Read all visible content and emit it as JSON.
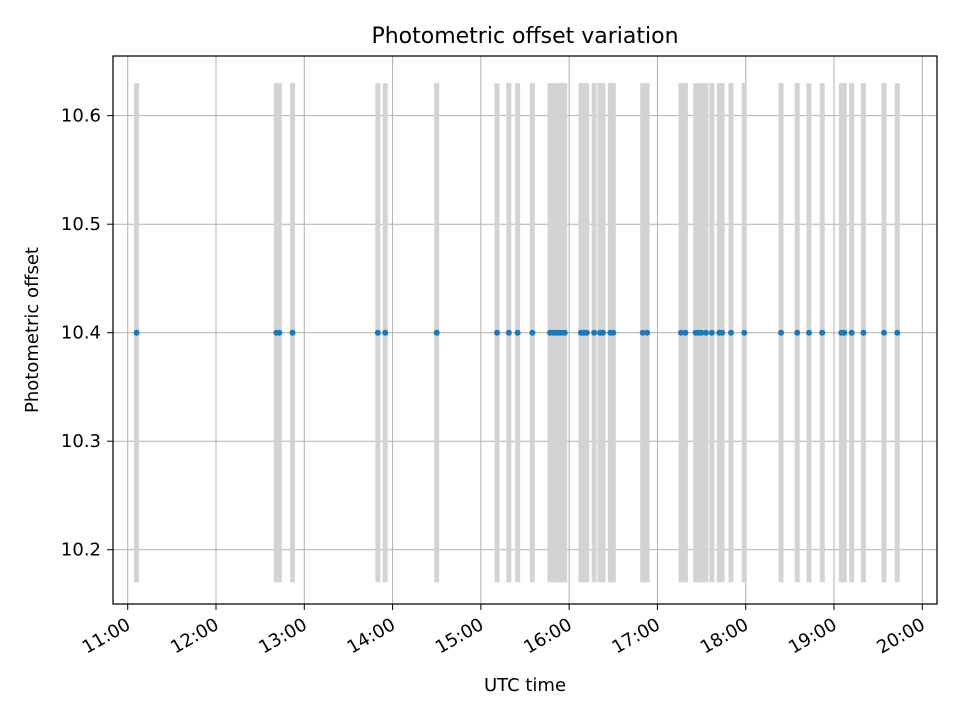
{
  "chart_data": {
    "type": "scatter",
    "title": "Photometric offset variation",
    "xlabel": "UTC time",
    "ylabel": "Photometric offset",
    "xlim": [
      "10:50",
      "20:10"
    ],
    "ylim": [
      10.15,
      10.655
    ],
    "grid": true,
    "x_ticks": [
      "11:00",
      "12:00",
      "13:00",
      "14:00",
      "15:00",
      "16:00",
      "17:00",
      "18:00",
      "19:00",
      "20:00"
    ],
    "y_ticks": [
      "10.2",
      "10.3",
      "10.4",
      "10.5",
      "10.6"
    ],
    "error_bar_range": [
      10.17,
      10.63
    ],
    "series": [
      {
        "color": "#1f77b4",
        "errorbar_color": "#d3d3d3",
        "x": [
          "11:06",
          "12:41",
          "12:43",
          "12:52",
          "13:50",
          "13:55",
          "14:30",
          "15:11",
          "15:19",
          "15:25",
          "15:35",
          "15:47",
          "15:49",
          "15:51",
          "15:53",
          "15:55",
          "15:57",
          "16:08",
          "16:10",
          "16:12",
          "16:17",
          "16:21",
          "16:23",
          "16:28",
          "16:30",
          "16:50",
          "16:53",
          "17:16",
          "17:19",
          "17:26",
          "17:28",
          "17:30",
          "17:33",
          "17:37",
          "17:42",
          "17:44",
          "17:50",
          "17:59",
          "18:24",
          "18:35",
          "18:43",
          "18:52",
          "19:05",
          "19:07",
          "19:12",
          "19:20",
          "19:34",
          "19:43"
        ],
        "y": [
          10.4,
          10.4,
          10.4,
          10.4,
          10.4,
          10.4,
          10.4,
          10.4,
          10.4,
          10.4,
          10.4,
          10.4,
          10.4,
          10.4,
          10.4,
          10.4,
          10.4,
          10.4,
          10.4,
          10.4,
          10.4,
          10.4,
          10.4,
          10.4,
          10.4,
          10.4,
          10.4,
          10.4,
          10.4,
          10.4,
          10.4,
          10.4,
          10.4,
          10.4,
          10.4,
          10.4,
          10.4,
          10.4,
          10.4,
          10.4,
          10.4,
          10.4,
          10.4,
          10.4,
          10.4,
          10.4,
          10.4,
          10.4
        ]
      }
    ]
  }
}
